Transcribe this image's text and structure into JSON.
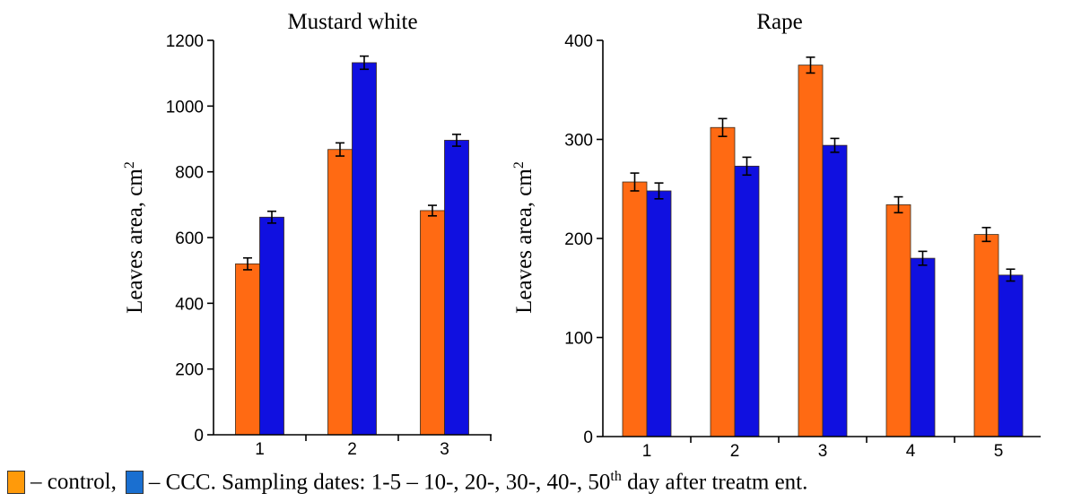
{
  "chart_data": [
    {
      "type": "bar",
      "title": "Mustard white",
      "ylabel": "Leaves area, cm",
      "ylabel_sup": "2",
      "categories": [
        "1",
        "2",
        "3"
      ],
      "ylim": [
        0,
        1200
      ],
      "yticks": [
        0,
        200,
        400,
        600,
        800,
        1000,
        1200
      ],
      "series": [
        {
          "name": "control",
          "color": "#ff6a13",
          "values": [
            520,
            868,
            682
          ],
          "errors": [
            18,
            20,
            16
          ]
        },
        {
          "name": "CCC",
          "color": "#1010e0",
          "values": [
            662,
            1132,
            896
          ],
          "errors": [
            18,
            20,
            18
          ]
        }
      ]
    },
    {
      "type": "bar",
      "title": "Rape",
      "ylabel": "Leaves area, cm",
      "ylabel_sup": "2",
      "categories": [
        "1",
        "2",
        "3",
        "4",
        "5"
      ],
      "ylim": [
        0,
        400
      ],
      "yticks": [
        0,
        100,
        200,
        300,
        400
      ],
      "series": [
        {
          "name": "control",
          "color": "#ff6a13",
          "values": [
            257,
            312,
            375,
            234,
            204
          ],
          "errors": [
            9,
            9,
            8,
            8,
            7
          ]
        },
        {
          "name": "CCC",
          "color": "#1010e0",
          "values": [
            248,
            273,
            294,
            180,
            163
          ],
          "errors": [
            8,
            9,
            7,
            7,
            6
          ]
        }
      ]
    }
  ],
  "legend": {
    "control_label": "– control,",
    "ccc_label": "– CCC. Sampling dates: 1-5 – 10-, 20-, 30-, 40-, 50",
    "ccc_sup": "th",
    "ccc_tail": " day after treatm ent.",
    "control_color": "#ff9a0a",
    "ccc_color": "#1a6fd0"
  }
}
